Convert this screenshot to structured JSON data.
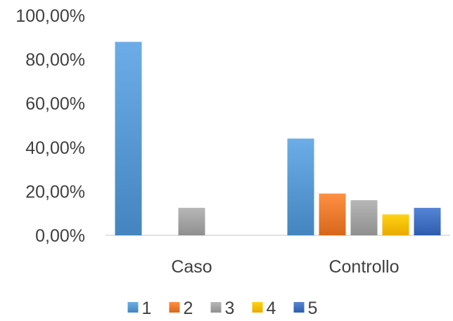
{
  "chart_data": {
    "type": "bar",
    "categories": [
      "Caso",
      "Controllo"
    ],
    "series": [
      {
        "name": "1",
        "values": [
          88.0,
          44.0
        ],
        "color": "#5B9BD5"
      },
      {
        "name": "2",
        "values": [
          0.0,
          19.0
        ],
        "color": "#ED7D31"
      },
      {
        "name": "3",
        "values": [
          12.5,
          16.0
        ],
        "color": "#A5A5A5"
      },
      {
        "name": "4",
        "values": [
          0.0,
          9.5
        ],
        "color": "#FFC000"
      },
      {
        "name": "5",
        "values": [
          0.0,
          12.5
        ],
        "color": "#4472C4"
      }
    ],
    "y_ticks": [
      "0,00%",
      "20,00%",
      "40,00%",
      "60,00%",
      "80,00%",
      "100,00%"
    ],
    "ylim": [
      0,
      100
    ],
    "grid": false,
    "legend_position": "bottom",
    "title": "",
    "xlabel": "",
    "ylabel": ""
  }
}
